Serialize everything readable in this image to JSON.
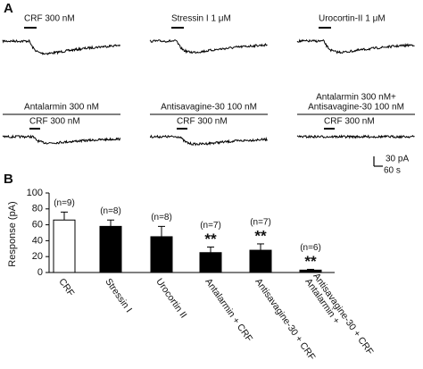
{
  "panel_a": {
    "label": "A",
    "top_row": [
      "CRF 300 nM",
      "Stressin I 1 μM",
      "Urocortin-II 1 μM"
    ],
    "antagonists": [
      [
        "Antalarmin 300 nM"
      ],
      [
        "Antisavagine-30 100 nM"
      ],
      [
        "Antalarmin 300 nM+",
        "Antisavagine-30 100 nM"
      ]
    ],
    "agonists": [
      "CRF 300 nM",
      "CRF 300 nM",
      "CRF 300 nM"
    ],
    "scale_bar": {
      "current": "30 pA",
      "time": "60 s"
    }
  },
  "panel_b_label": "B",
  "chart_data": {
    "type": "bar",
    "y_label": "Response (pA)",
    "categories": [
      "CRF",
      "Stressin I",
      "Urocortin II",
      "Antalarmin + CRF",
      "Antisavagine-30 + CRF",
      [
        "Antalarmin +",
        "Antisavagine-30 + CRF"
      ]
    ],
    "values": [
      66,
      58,
      45,
      25,
      28,
      3
    ],
    "errors": [
      10,
      8,
      13,
      7,
      8,
      1
    ],
    "colors": [
      "#ffffff",
      "#000000",
      "#000000",
      "#000000",
      "#000000",
      "#000000"
    ],
    "n_labels": [
      "(n=9)",
      "(n=8)",
      "(n=8)",
      "(n=7)",
      "(n=7)",
      "(n=6)"
    ],
    "significance": [
      null,
      null,
      null,
      "**",
      "**",
      "**"
    ],
    "ylim": [
      0,
      100
    ],
    "yticks": [
      0,
      20,
      40,
      60,
      80,
      100
    ]
  }
}
